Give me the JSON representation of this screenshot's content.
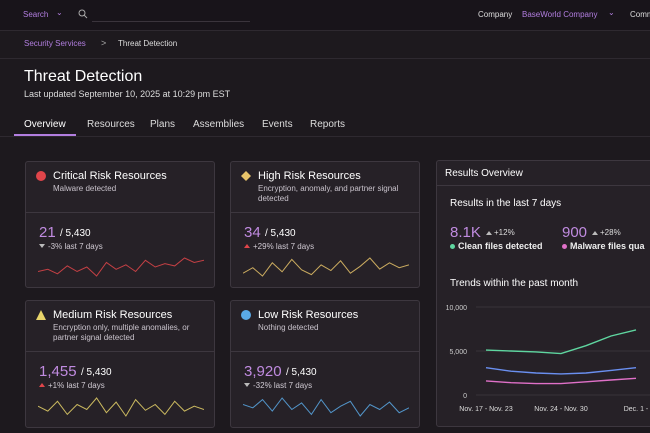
{
  "top_bar": {
    "search": "Search",
    "company_label": "Company",
    "company": "BaseWorld Company",
    "more": "Comm"
  },
  "breadcrumb": [
    "Security Services",
    "Threat Detection"
  ],
  "header": {
    "title": "Threat Detection",
    "updated": "Last updated September 10, 2025 at 10:29 pm EST"
  },
  "tabs": [
    "Overview",
    "Resources",
    "Plans",
    "Assemblies",
    "Events",
    "Reports"
  ],
  "cards": [
    {
      "title": "Critical Risk Resources",
      "subtitle": "Malware detected",
      "count": "21",
      "total": "/ 5,430",
      "change": "-3% last 7 days",
      "direction": "down",
      "color": "#e0454a",
      "trend": [
        40,
        42,
        38,
        45,
        40,
        44,
        36,
        48,
        42,
        46,
        40,
        50,
        44,
        47,
        45,
        52,
        48,
        50
      ]
    },
    {
      "title": "High Risk Resources",
      "subtitle": "Encryption, anomaly, and partner signal detected",
      "count": "34",
      "total": "/ 5,430",
      "change": "+29% last 7 days",
      "direction": "up",
      "color": "#e8c36a",
      "trend": [
        40,
        48,
        36,
        55,
        42,
        60,
        45,
        38,
        52,
        44,
        58,
        40,
        50,
        62,
        46,
        55,
        48,
        52
      ]
    },
    {
      "title": "Medium Risk Resources",
      "subtitle": "Encryption only, multiple anomalies, or partner signal detected",
      "count": "1,455",
      "total": "/ 5,430",
      "change": "+1% last 7 days",
      "direction": "up",
      "color": "#e8d46a",
      "trend": [
        50,
        44,
        56,
        40,
        52,
        46,
        60,
        42,
        55,
        38,
        58,
        45,
        52,
        40,
        56,
        44,
        50,
        46
      ]
    },
    {
      "title": "Low Risk Resources",
      "subtitle": "Nothing detected",
      "count": "3,920",
      "total": "/ 5,430",
      "change": "-32% last 7 days",
      "direction": "down",
      "color": "#5aa9e6",
      "trend": [
        52,
        48,
        58,
        44,
        60,
        46,
        54,
        40,
        58,
        42,
        50,
        56,
        38,
        52,
        46,
        55,
        42,
        48
      ]
    }
  ],
  "results": {
    "title": "Results Overview",
    "subtitle": "Results in the last 7 days",
    "stats": [
      {
        "value": "8.1K",
        "change": "+12%",
        "label": "Clean files detected",
        "color": "#5fd6a0"
      },
      {
        "value": "900",
        "change": "+28%",
        "label": "Malware files qua",
        "color": "#e070c8"
      }
    ],
    "trends_title": "Trends within the past month"
  },
  "chart_data": {
    "type": "line",
    "categories": [
      "Nov. 17 - Nov. 23",
      null,
      null,
      "Nov. 24 - Nov. 30",
      null,
      null,
      "Dec. 1 -"
    ],
    "series": [
      {
        "color": "#5fd6a0",
        "values": [
          5100,
          5000,
          4900,
          4700,
          5600,
          6700,
          7400
        ]
      },
      {
        "color": "#6a8ff0",
        "values": [
          3100,
          2700,
          2500,
          2400,
          2500,
          2800,
          3100
        ]
      },
      {
        "color": "#e070c8",
        "values": [
          1600,
          1400,
          1300,
          1300,
          1500,
          1700,
          1900
        ]
      }
    ],
    "ylim": [
      0,
      10000
    ],
    "yticks": [
      0,
      {
        "value": 5000,
        "label": "5,000"
      },
      {
        "value": 10000,
        "label": "10,000"
      }
    ],
    "grid": true
  }
}
